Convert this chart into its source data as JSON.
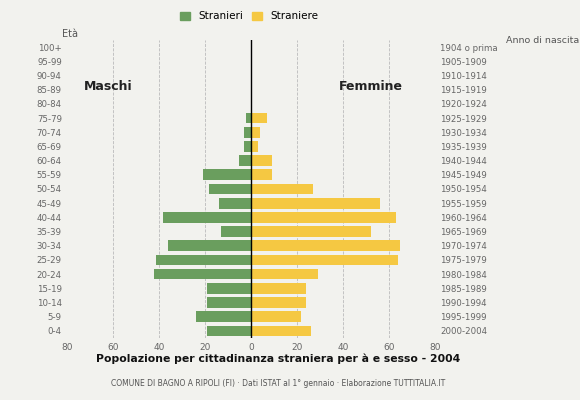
{
  "age_groups": [
    "0-4",
    "5-9",
    "10-14",
    "15-19",
    "20-24",
    "25-29",
    "30-34",
    "35-39",
    "40-44",
    "45-49",
    "50-54",
    "55-59",
    "60-64",
    "65-69",
    "70-74",
    "75-79",
    "80-84",
    "85-89",
    "90-94",
    "95-99",
    "100+"
  ],
  "birth_years": [
    "2000-2004",
    "1995-1999",
    "1990-1994",
    "1985-1989",
    "1980-1984",
    "1975-1979",
    "1970-1974",
    "1965-1969",
    "1960-1964",
    "1955-1959",
    "1950-1954",
    "1945-1949",
    "1940-1944",
    "1935-1939",
    "1930-1934",
    "1925-1929",
    "1920-1924",
    "1915-1919",
    "1910-1914",
    "1905-1909",
    "1904 o prima"
  ],
  "males": [
    19,
    24,
    19,
    19,
    42,
    41,
    36,
    13,
    38,
    14,
    18,
    21,
    5,
    3,
    3,
    2,
    0,
    0,
    0,
    0,
    0
  ],
  "females": [
    26,
    22,
    24,
    24,
    29,
    64,
    65,
    52,
    63,
    56,
    27,
    9,
    9,
    3,
    4,
    7,
    0,
    0,
    0,
    0,
    0
  ],
  "male_color": "#6a9e5e",
  "female_color": "#f5c842",
  "title": "Popolazione per cittadinanza straniera per à e sesso - 2004",
  "subtitle": "COMUNE DI BAGNO A RIPOLI (FI) · Dati ISTAT al 1° gennaio · Elaborazione TUTTITALIA.IT",
  "legend_male": "Stranieri",
  "legend_female": "Straniere",
  "label_eta": "Età",
  "label_anno": "Anno di nascita",
  "label_maschi": "Maschi",
  "label_femmine": "Femmine",
  "xlim": 80,
  "bar_height": 0.75,
  "background_color": "#f2f2ee"
}
